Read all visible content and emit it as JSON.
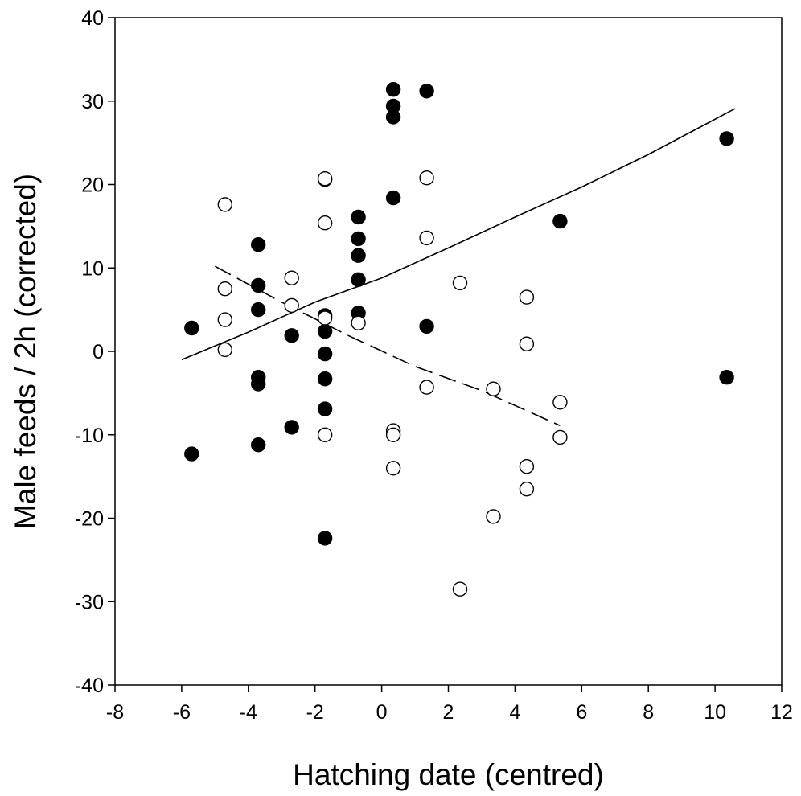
{
  "chart_data": {
    "type": "scatter",
    "title": "",
    "xlabel": "Hatching date (centred)",
    "ylabel": "Male feeds / 2h (corrected)",
    "xlim": [
      -8,
      12
    ],
    "ylim": [
      -40,
      40
    ],
    "xticks": [
      -8,
      -6,
      -4,
      -2,
      0,
      2,
      4,
      6,
      8,
      10,
      12
    ],
    "yticks": [
      -40,
      -30,
      -20,
      -10,
      0,
      10,
      20,
      30,
      40
    ],
    "xtick_labels": [
      "-8",
      "-6",
      "-4",
      "-2",
      "0",
      "2",
      "4",
      "6",
      "8",
      "10",
      "12"
    ],
    "ytick_labels": [
      "-40",
      "-30",
      "-20",
      "-10",
      "0",
      "10",
      "20",
      "30",
      "40"
    ],
    "grid": false,
    "legend": "none",
    "series": [
      {
        "marker": "filled-circle",
        "color": "#000000",
        "points": [
          [
            -5.7,
            2.8
          ],
          [
            -5.7,
            -12.3
          ],
          [
            -3.7,
            12.8
          ],
          [
            -3.7,
            7.9
          ],
          [
            -3.7,
            5.0
          ],
          [
            -3.7,
            -3.1
          ],
          [
            -3.7,
            -3.9
          ],
          [
            -3.7,
            -11.2
          ],
          [
            -2.7,
            1.9
          ],
          [
            -2.7,
            -9.1
          ],
          [
            -1.7,
            20.6
          ],
          [
            -1.7,
            4.3
          ],
          [
            -1.7,
            2.4
          ],
          [
            -1.7,
            -0.3
          ],
          [
            -1.7,
            -3.3
          ],
          [
            -1.7,
            -6.9
          ],
          [
            -1.7,
            -22.4
          ],
          [
            -0.7,
            16.1
          ],
          [
            -0.7,
            13.5
          ],
          [
            -0.7,
            11.5
          ],
          [
            -0.7,
            8.6
          ],
          [
            -0.7,
            4.6
          ],
          [
            0.35,
            31.4
          ],
          [
            0.35,
            29.4
          ],
          [
            0.35,
            28.1
          ],
          [
            0.35,
            18.4
          ],
          [
            1.35,
            31.2
          ],
          [
            1.35,
            3.0
          ],
          [
            5.35,
            15.6
          ],
          [
            10.35,
            25.5
          ],
          [
            10.35,
            -3.1
          ]
        ]
      },
      {
        "marker": "open-circle",
        "color": "#000000",
        "points": [
          [
            -4.7,
            17.6
          ],
          [
            -4.7,
            7.5
          ],
          [
            -4.7,
            3.8
          ],
          [
            -4.7,
            0.2
          ],
          [
            -2.7,
            8.8
          ],
          [
            -2.7,
            5.5
          ],
          [
            -1.7,
            20.7
          ],
          [
            -1.7,
            15.4
          ],
          [
            -1.7,
            4.0
          ],
          [
            -1.7,
            -10.0
          ],
          [
            -0.7,
            3.4
          ],
          [
            0.35,
            -9.5
          ],
          [
            0.35,
            -10.0
          ],
          [
            0.35,
            -14.0
          ],
          [
            1.35,
            20.8
          ],
          [
            1.35,
            13.6
          ],
          [
            1.35,
            -4.3
          ],
          [
            2.35,
            8.2
          ],
          [
            2.35,
            -28.5
          ],
          [
            3.35,
            -4.5
          ],
          [
            3.35,
            -19.8
          ],
          [
            4.35,
            6.5
          ],
          [
            4.35,
            0.9
          ],
          [
            4.35,
            -13.8
          ],
          [
            4.35,
            -16.5
          ],
          [
            5.35,
            -6.1
          ],
          [
            5.35,
            -10.3
          ]
        ]
      }
    ],
    "fits": [
      {
        "style": "solid",
        "color": "#000000",
        "points": [
          [
            -6,
            -1.0
          ],
          [
            -4,
            2.3
          ],
          [
            -2,
            5.9
          ],
          [
            0,
            8.8
          ],
          [
            2,
            12.4
          ],
          [
            4,
            16.1
          ],
          [
            6,
            19.7
          ],
          [
            8,
            23.6
          ],
          [
            10.6,
            29.1
          ]
        ]
      },
      {
        "style": "dashed",
        "color": "#000000",
        "points": [
          [
            -5,
            10.2
          ],
          [
            -3,
            5.9
          ],
          [
            -1,
            1.9
          ],
          [
            1,
            -1.8
          ],
          [
            3,
            -4.7
          ],
          [
            5.35,
            -8.9
          ]
        ]
      }
    ]
  }
}
